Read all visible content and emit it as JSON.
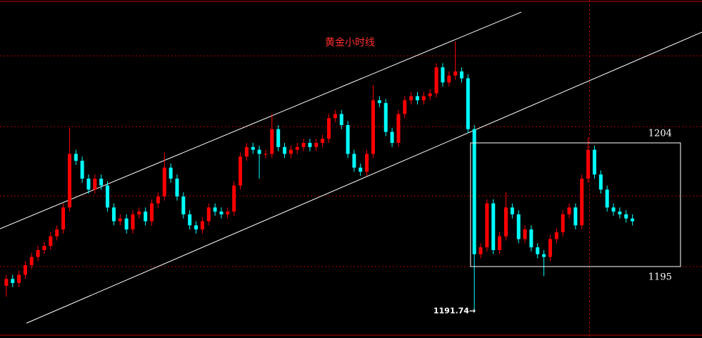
{
  "chart_data": {
    "type": "candlestick",
    "title": "黄金小时线",
    "up_color": "#ff0000",
    "down_color": "#00ffff",
    "xlim": [
      -1,
      110
    ],
    "ylim": [
      1189.8,
      1214.4
    ],
    "grid_levels": [
      1210.34,
      1205.19,
      1200.14,
      1195.0
    ],
    "open": [
      1193.6,
      1194.1,
      1193.8,
      1194.4,
      1195.1,
      1195.7,
      1196.2,
      1196.5,
      1197.2,
      1197.7,
      1199.3,
      1203.2,
      1202.7,
      1201.4,
      1200.6,
      1201.4,
      1200.9,
      1199.3,
      1198.3,
      1198.5,
      1197.7,
      1198.8,
      1199.0,
      1198.3,
      1199.6,
      1200.1,
      1202.2,
      1201.4,
      1200.1,
      1198.8,
      1198.0,
      1197.7,
      1198.3,
      1199.3,
      1199.0,
      1198.8,
      1199.0,
      1200.9,
      1203.0,
      1203.7,
      1203.5,
      1203.2,
      1203.2,
      1205.0,
      1203.7,
      1203.2,
      1203.5,
      1203.7,
      1204.0,
      1203.7,
      1204.0,
      1204.3,
      1205.8,
      1206.1,
      1205.3,
      1203.2,
      1202.2,
      1201.9,
      1203.2,
      1207.1,
      1206.9,
      1204.8,
      1204.0,
      1206.1,
      1207.1,
      1207.4,
      1207.1,
      1207.4,
      1207.6,
      1209.5,
      1208.4,
      1208.9,
      1209.2,
      1208.7,
      1205.0,
      1195.9,
      1196.4,
      1199.6,
      1196.2,
      1197.2,
      1199.3,
      1198.8,
      1197.0,
      1197.7,
      1196.4,
      1195.9,
      1195.7,
      1197.0,
      1197.5,
      1198.8,
      1199.3,
      1198.0,
      1201.4,
      1203.5,
      1201.7,
      1200.6,
      1199.3,
      1199.0,
      1198.8,
      1198.5
    ],
    "high": [
      1194.4,
      1194.4,
      1194.7,
      1195.4,
      1196.0,
      1196.5,
      1196.8,
      1197.5,
      1198.0,
      1199.6,
      1205.1,
      1203.5,
      1203.0,
      1201.7,
      1201.7,
      1201.7,
      1201.2,
      1199.6,
      1198.8,
      1198.8,
      1199.1,
      1199.3,
      1199.3,
      1199.9,
      1200.4,
      1203.3,
      1202.5,
      1201.7,
      1200.4,
      1199.1,
      1198.3,
      1198.6,
      1199.6,
      1199.6,
      1199.3,
      1199.3,
      1201.2,
      1203.3,
      1204.0,
      1204.0,
      1203.8,
      1203.5,
      1206.1,
      1205.3,
      1204.0,
      1203.8,
      1204.0,
      1204.3,
      1204.3,
      1204.3,
      1204.6,
      1206.1,
      1206.4,
      1206.4,
      1205.6,
      1203.5,
      1202.5,
      1203.5,
      1208.2,
      1207.4,
      1207.2,
      1205.1,
      1206.4,
      1207.4,
      1207.7,
      1207.7,
      1207.7,
      1207.9,
      1209.8,
      1209.8,
      1209.2,
      1211.4,
      1209.5,
      1209.0,
      1205.3,
      1196.7,
      1199.9,
      1199.9,
      1197.5,
      1200.4,
      1199.6,
      1199.1,
      1198.0,
      1198.0,
      1196.7,
      1196.2,
      1197.3,
      1197.8,
      1199.1,
      1199.6,
      1199.6,
      1201.7,
      1204.4,
      1203.8,
      1202.0,
      1200.9,
      1199.6,
      1199.3,
      1199.1,
      1198.8
    ],
    "low": [
      1192.8,
      1193.5,
      1193.5,
      1194.1,
      1194.8,
      1195.4,
      1195.9,
      1196.2,
      1196.9,
      1197.4,
      1199.0,
      1202.4,
      1201.1,
      1200.3,
      1200.3,
      1200.6,
      1199.0,
      1198.0,
      1198.0,
      1197.4,
      1197.4,
      1198.5,
      1198.0,
      1198.0,
      1199.3,
      1199.8,
      1201.1,
      1199.8,
      1198.5,
      1197.7,
      1197.4,
      1197.4,
      1198.0,
      1198.7,
      1198.5,
      1198.5,
      1198.7,
      1200.6,
      1202.7,
      1203.2,
      1201.4,
      1202.9,
      1202.9,
      1203.4,
      1202.9,
      1202.9,
      1203.2,
      1203.4,
      1203.4,
      1203.4,
      1203.7,
      1204.0,
      1205.5,
      1205.0,
      1202.9,
      1201.9,
      1201.6,
      1201.6,
      1202.9,
      1206.6,
      1204.5,
      1203.7,
      1203.7,
      1205.8,
      1206.8,
      1206.8,
      1206.8,
      1207.1,
      1207.3,
      1208.1,
      1208.1,
      1208.6,
      1208.4,
      1204.7,
      1191.74,
      1195.6,
      1196.1,
      1195.9,
      1195.9,
      1196.9,
      1198.5,
      1196.7,
      1196.7,
      1196.1,
      1195.6,
      1194.3,
      1195.4,
      1196.7,
      1197.2,
      1198.5,
      1197.7,
      1197.7,
      1201.1,
      1201.4,
      1200.3,
      1199.0,
      1198.7,
      1198.5,
      1198.2,
      1198.0
    ],
    "close": [
      1194.1,
      1193.8,
      1194.4,
      1195.1,
      1195.7,
      1196.2,
      1196.5,
      1197.2,
      1197.7,
      1199.3,
      1203.2,
      1202.7,
      1201.4,
      1200.6,
      1201.4,
      1200.9,
      1199.3,
      1198.3,
      1198.5,
      1197.7,
      1198.8,
      1199.0,
      1198.3,
      1199.6,
      1200.1,
      1202.2,
      1201.4,
      1200.1,
      1198.8,
      1198.0,
      1197.7,
      1198.3,
      1199.3,
      1199.0,
      1198.8,
      1199.0,
      1200.9,
      1203.0,
      1203.7,
      1203.5,
      1203.2,
      1203.2,
      1205.0,
      1203.7,
      1203.2,
      1203.5,
      1203.7,
      1204.0,
      1203.7,
      1204.0,
      1204.3,
      1205.8,
      1206.1,
      1205.3,
      1203.2,
      1202.2,
      1201.9,
      1203.2,
      1207.1,
      1206.9,
      1204.8,
      1204.0,
      1206.1,
      1207.1,
      1207.4,
      1207.1,
      1207.4,
      1207.6,
      1209.5,
      1208.4,
      1208.9,
      1209.2,
      1208.7,
      1205.0,
      1195.9,
      1196.4,
      1199.6,
      1196.2,
      1197.2,
      1199.3,
      1198.8,
      1197.0,
      1197.7,
      1196.4,
      1195.9,
      1195.7,
      1197.0,
      1197.5,
      1198.8,
      1199.3,
      1198.0,
      1201.4,
      1203.5,
      1201.7,
      1200.6,
      1199.3,
      1199.0,
      1198.8,
      1198.5,
      1198.3
    ],
    "trendlines": [
      {
        "from": [
          -1,
          1197.75
        ],
        "to": [
          81.43,
          1213.52
        ]
      },
      {
        "from": [
          3.18,
          1190.88
        ],
        "to": [
          110,
          1212.06
        ]
      }
    ],
    "range_box": {
      "x": [
        73.4,
        106.6
      ],
      "top": 1204,
      "bottom": 1195
    },
    "marker_x": 92.2,
    "low_marker": {
      "value": 1191.74,
      "label": "1191.74→"
    }
  }
}
